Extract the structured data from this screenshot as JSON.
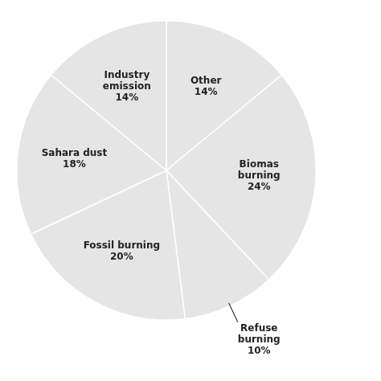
{
  "chart_data": {
    "type": "pie",
    "categories": [
      "Other",
      "Biomas\nburning",
      "Refuse\nburning",
      "Fossil burning",
      "Sahara dust",
      "Industry\nemission"
    ],
    "values": [
      14,
      24,
      10,
      20,
      18,
      14
    ],
    "value_labels": [
      "14%",
      "24%",
      "10%",
      "20%",
      "18%",
      "14%"
    ],
    "data_labels": true
  }
}
